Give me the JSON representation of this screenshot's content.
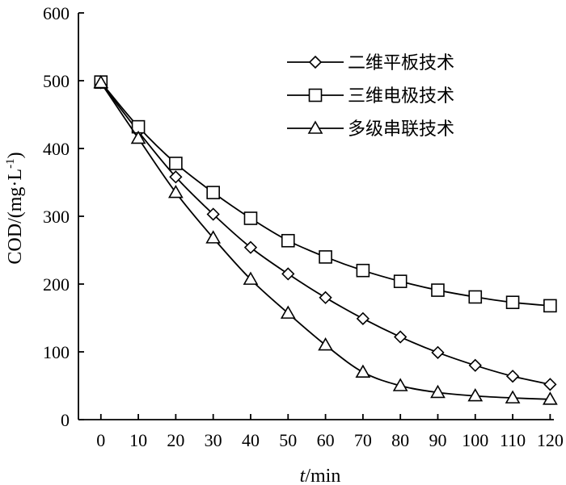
{
  "chart_data": {
    "type": "line",
    "x": [
      0,
      10,
      20,
      30,
      40,
      50,
      60,
      70,
      80,
      90,
      100,
      110,
      120
    ],
    "x_tick_labels": [
      "0",
      "10",
      "20",
      "30",
      "40",
      "50",
      "60",
      "70",
      "80",
      "90",
      "100",
      "110",
      "120"
    ],
    "y_tick_labels": [
      "0",
      "100",
      "200",
      "300",
      "400",
      "500",
      "600"
    ],
    "xlim": [
      -6,
      121
    ],
    "ylim": [
      0,
      600
    ],
    "xlabel_italic": "t",
    "xlabel_unit": "/min",
    "ylabel_main": "COD/(mg·L",
    "ylabel_sup": "-1",
    "ylabel_close": ")",
    "legend_position": "top-right",
    "grid": false,
    "series": [
      {
        "name": "二维平板技术",
        "marker": "diamond",
        "values": [
          497,
          425,
          358,
          303,
          254,
          215,
          180,
          149,
          122,
          99,
          80,
          64,
          52
        ]
      },
      {
        "name": "三维电极技术",
        "marker": "square",
        "values": [
          498,
          432,
          378,
          335,
          297,
          264,
          240,
          220,
          204,
          191,
          181,
          173,
          168
        ]
      },
      {
        "name": "多级串联技术",
        "marker": "triangle",
        "values": [
          497,
          415,
          335,
          268,
          207,
          157,
          110,
          70,
          50,
          40,
          35,
          32,
          30
        ]
      }
    ]
  }
}
